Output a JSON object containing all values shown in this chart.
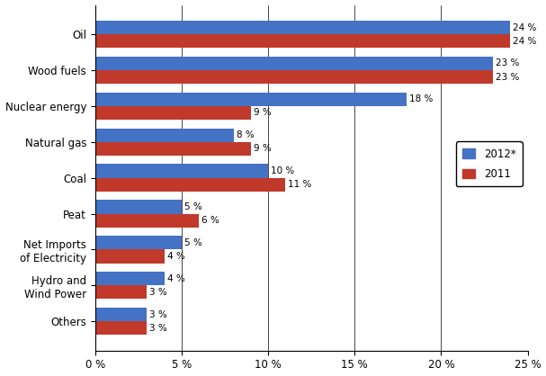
{
  "categories": [
    "Oil",
    "Wood fuels",
    "Nuclear energy",
    "Natural gas",
    "Coal",
    "Peat",
    "Net Imports\nof Electricity",
    "Hydro and\nWind Power",
    "Others"
  ],
  "values_2012": [
    24,
    23,
    18,
    8,
    10,
    5,
    5,
    4,
    3
  ],
  "values_2011": [
    24,
    23,
    9,
    9,
    11,
    6,
    4,
    3,
    3
  ],
  "labels_2012": [
    "24 %",
    "23 %",
    "18 %",
    "8 %",
    "10 %",
    "5 %",
    "5 %",
    "4 %",
    "3 %"
  ],
  "labels_2011": [
    "24 %",
    "23 %",
    "9 %",
    "9 %",
    "11 %",
    "6 %",
    "4 %",
    "3 %",
    "3 %"
  ],
  "color_2012": "#4472C4",
  "color_2011": "#C0392B",
  "legend_2012": "2012*",
  "legend_2011": "2011",
  "xlim": [
    0,
    25
  ],
  "xticks": [
    0,
    5,
    10,
    15,
    20,
    25
  ],
  "xticklabels": [
    "0 %",
    "5 %",
    "10 %",
    "15 %",
    "20 %",
    "25 %"
  ],
  "bar_height": 0.38,
  "background_color": "#ffffff"
}
